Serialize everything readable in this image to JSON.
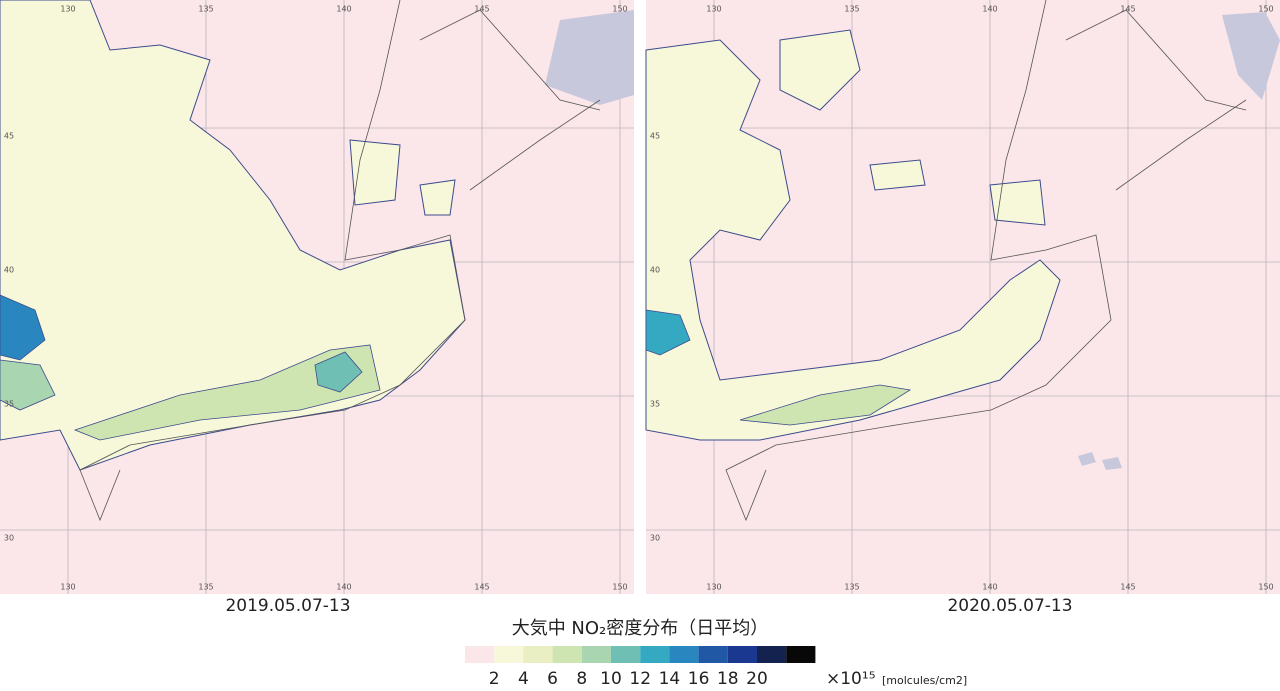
{
  "panels": [
    {
      "label": "2019.05.07-13",
      "lon_ticks": [
        130,
        135,
        140,
        145,
        150
      ],
      "lat_ticks": [
        45,
        40,
        35,
        30
      ]
    },
    {
      "label": "2020.05.07-13",
      "lon_ticks": [
        130,
        135,
        140,
        145,
        150
      ],
      "lat_ticks": [
        45,
        40,
        35,
        30
      ]
    }
  ],
  "legend": {
    "title": "大気中 NO₂密度分布（日平均）",
    "colors": [
      "#fbe6ea",
      "#f7f7da",
      "#e9eec3",
      "#cfe5b1",
      "#a9d5b0",
      "#6fbfb4",
      "#36a9c2",
      "#2a86bf",
      "#2158a6",
      "#1b3890",
      "#14224f",
      "#080808"
    ],
    "ticks": [
      2,
      4,
      6,
      8,
      10,
      12,
      14,
      16,
      18,
      20
    ],
    "unit": "×10¹⁵",
    "unit_note": "[molcules/cm2]"
  }
}
